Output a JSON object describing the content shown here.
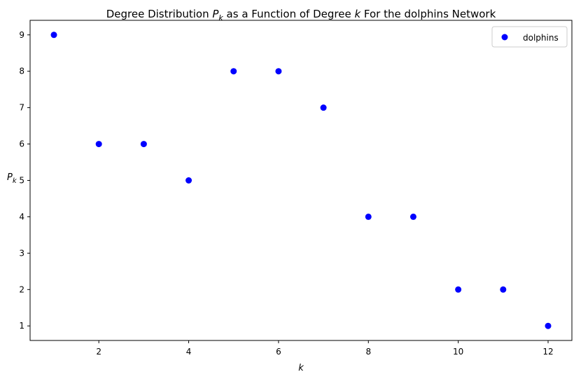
{
  "chart_data": {
    "type": "scatter",
    "title_prefix": "Degree Distribution ",
    "title_pk_base": "P",
    "title_pk_sub": "k",
    "title_middle": " as a Function of Degree ",
    "title_k": "k",
    "title_suffix": " For the dolphins Network",
    "xlabel": "k",
    "ylabel_base": "P",
    "ylabel_sub": "k",
    "xlim": [
      0.47,
      12.53
    ],
    "ylim": [
      0.6,
      9.4
    ],
    "xticks": [
      2,
      4,
      6,
      8,
      10,
      12
    ],
    "yticks": [
      1,
      2,
      3,
      4,
      5,
      6,
      7,
      8,
      9
    ],
    "grid": false,
    "legend_position": "top-right",
    "series": [
      {
        "name": "dolphins",
        "color": "#0000ff",
        "marker": "circle",
        "x": [
          1,
          2,
          3,
          4,
          5,
          6,
          7,
          8,
          9,
          10,
          11,
          12
        ],
        "y": [
          9,
          6,
          6,
          5,
          8,
          8,
          7,
          4,
          4,
          2,
          2,
          1
        ]
      }
    ]
  }
}
